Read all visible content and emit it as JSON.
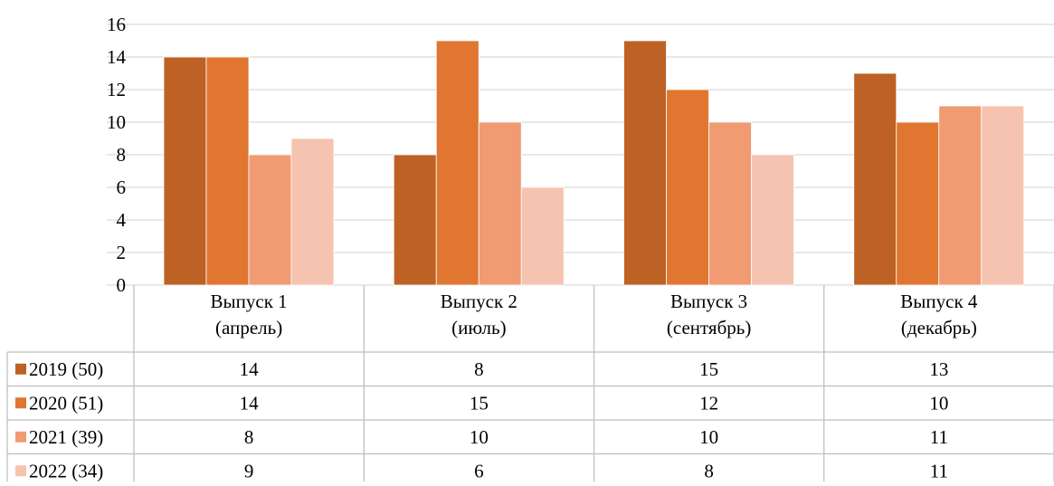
{
  "chart_data": {
    "type": "bar",
    "categories": [
      [
        "Выпуск 1",
        "(апрель)"
      ],
      [
        "Выпуск 2",
        "(июль)"
      ],
      [
        "Выпуск 3",
        "(сентябрь)"
      ],
      [
        "Выпуск 4",
        "(декабрь)"
      ]
    ],
    "series": [
      {
        "name": "2019 (50)",
        "color": "#BD6224",
        "values": [
          14,
          8,
          15,
          13
        ]
      },
      {
        "name": "2020 (51)",
        "color": "#E07630",
        "values": [
          14,
          15,
          12,
          10
        ]
      },
      {
        "name": "2021 (39)",
        "color": "#F09B72",
        "values": [
          8,
          10,
          10,
          11
        ]
      },
      {
        "name": "2022 (34)",
        "color": "#F6C3B1",
        "values": [
          9,
          6,
          8,
          11
        ]
      }
    ],
    "ylim": [
      0,
      16
    ],
    "yticks": [
      0,
      2,
      4,
      6,
      8,
      10,
      12,
      14,
      16
    ],
    "grid": true,
    "legend": "data table rows with color keys",
    "gridline_color": "#D9D9D9",
    "table_border_color": "#BFBFBF"
  }
}
